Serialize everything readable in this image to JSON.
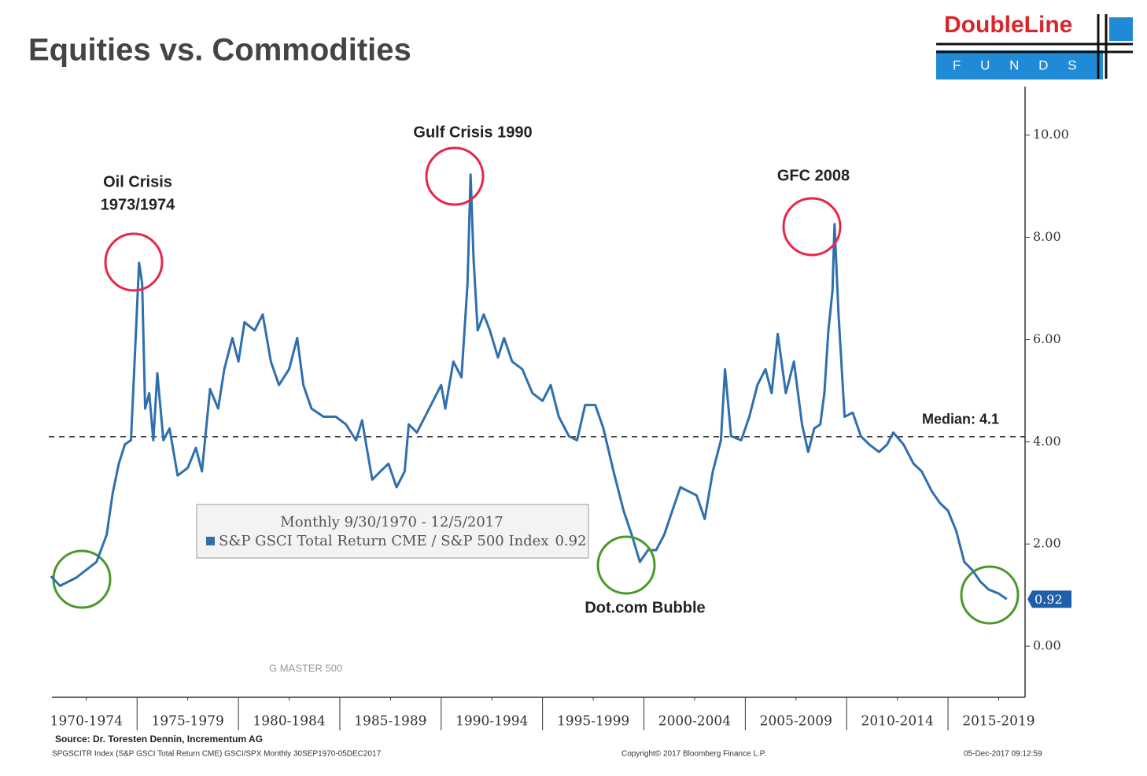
{
  "chart_data": {
    "type": "line",
    "title": "Equities vs. Commodities",
    "logo": {
      "name": "DoubleLine",
      "sub": "F U N D S"
    },
    "legend_title": "Monthly 9/30/1970 - 12/5/2017",
    "last_value_label": "0.92",
    "median": {
      "value": 4.1,
      "label": "Median: 4.1"
    },
    "annotations": [
      [
        "Oil Crisis",
        "1973/1974"
      ],
      [
        "Gulf Crisis 1990"
      ],
      [
        "GFC 2008"
      ],
      [
        "Dot.com Bubble"
      ]
    ],
    "watermark": "G MASTER 500",
    "source": "Source: Dr. Toresten Dennin, Incrementum AG",
    "footer": [
      "SPGSCITR Index (S&P GSCI Total Return CME) GSCI/SPX  Monthly 30SEP1970-05DEC2017",
      "Copyright© 2017 Bloomberg Finance L.P.",
      "05-Dec-2017 09:12:59"
    ],
    "xlim": [
      1970.8,
      2018.8
    ],
    "ylim": [
      -1,
      10.95
    ],
    "xticks": [
      {
        "value": 1972.5,
        "label": "1970-1974"
      },
      {
        "value": 1977.5,
        "label": "1975-1979"
      },
      {
        "value": 1982.5,
        "label": "1980-1984"
      },
      {
        "value": 1987.5,
        "label": "1985-1989"
      },
      {
        "value": 1992.5,
        "label": "1990-1994"
      },
      {
        "value": 1997.5,
        "label": "1995-1999"
      },
      {
        "value": 2002.5,
        "label": "2000-2004"
      },
      {
        "value": 2007.5,
        "label": "2005-2009"
      },
      {
        "value": 2012.5,
        "label": "2010-2014"
      },
      {
        "value": 2017.5,
        "label": "2015-2019"
      }
    ],
    "yticks": [
      {
        "value": 0,
        "label": "0.00"
      },
      {
        "value": 2,
        "label": "2.00"
      },
      {
        "value": 4,
        "label": "4.00"
      },
      {
        "value": 6,
        "label": "6.00"
      },
      {
        "value": 8,
        "label": "8.00"
      },
      {
        "value": 10,
        "label": "10.00"
      }
    ],
    "x": [
      1970.75,
      1971.2,
      1972,
      1973,
      1973.5,
      1973.8,
      1974.1,
      1974.4,
      1974.7,
      1974.95,
      1975.1,
      1975.25,
      1975.4,
      1975.6,
      1975.8,
      1976,
      1976.3,
      1976.6,
      1977,
      1977.5,
      1977.9,
      1978.2,
      1978.6,
      1979,
      1979.3,
      1979.7,
      1980,
      1980.3,
      1980.8,
      1981.2,
      1981.6,
      1982,
      1982.5,
      1982.9,
      1983.2,
      1983.6,
      1984.2,
      1984.8,
      1985.3,
      1985.8,
      1986.1,
      1986.3,
      1986.6,
      1987,
      1987.4,
      1987.8,
      1988.2,
      1988.4,
      1988.8,
      1989.2,
      1989.6,
      1990,
      1990.2,
      1990.6,
      1991,
      1991.3,
      1991.45,
      1991.6,
      1991.8,
      1992.1,
      1992.4,
      1992.8,
      1993.1,
      1993.5,
      1994,
      1994.5,
      1995,
      1995.4,
      1995.8,
      1996.3,
      1996.7,
      1997.1,
      1997.6,
      1998,
      1998.5,
      1999,
      1999.4,
      1999.8,
      2000.2,
      2000.6,
      2001,
      2001.4,
      2001.8,
      2002.2,
      2002.6,
      2003,
      2003.4,
      2003.8,
      2004,
      2004.3,
      2004.8,
      2005.2,
      2005.6,
      2006,
      2006.3,
      2006.6,
      2007,
      2007.4,
      2007.8,
      2008.1,
      2008.4,
      2008.7,
      2008.9,
      2009.1,
      2009.3,
      2009.4,
      2009.6,
      2009.9,
      2010.3,
      2010.7,
      2011.1,
      2011.6,
      2012,
      2012.3,
      2012.8,
      2013.3,
      2013.7,
      2014.2,
      2014.6,
      2015,
      2015.4,
      2015.8,
      2016.2,
      2016.6,
      2017,
      2017.5,
      2017.9
    ],
    "series": [
      {
        "name": "S&P GSCI Total Return CME / S&P 500 Index",
        "color": "#2f6fad",
        "values": [
          1.37,
          1.18,
          1.34,
          1.65,
          2.18,
          3.0,
          3.57,
          3.95,
          4.03,
          6.18,
          7.5,
          7.1,
          4.65,
          4.95,
          4.03,
          5.34,
          4.03,
          4.26,
          3.34,
          3.49,
          3.88,
          3.42,
          5.03,
          4.65,
          5.42,
          6.03,
          5.57,
          6.34,
          6.18,
          6.49,
          5.57,
          5.11,
          5.42,
          6.03,
          5.11,
          4.65,
          4.49,
          4.49,
          4.34,
          4.03,
          4.42,
          3.95,
          3.26,
          3.42,
          3.57,
          3.11,
          3.42,
          4.34,
          4.18,
          4.49,
          4.8,
          5.11,
          4.65,
          5.57,
          5.26,
          7.1,
          9.23,
          7.57,
          6.18,
          6.49,
          6.18,
          5.65,
          6.03,
          5.57,
          5.42,
          4.95,
          4.8,
          5.11,
          4.49,
          4.11,
          4.03,
          4.72,
          4.72,
          4.26,
          3.42,
          2.65,
          2.18,
          1.65,
          1.88,
          1.88,
          2.18,
          2.65,
          3.11,
          3.03,
          2.95,
          2.49,
          3.42,
          4.03,
          5.42,
          4.11,
          4.03,
          4.49,
          5.11,
          5.42,
          4.95,
          6.11,
          4.95,
          5.57,
          4.34,
          3.8,
          4.26,
          4.34,
          4.95,
          6.18,
          6.95,
          8.26,
          6.49,
          4.49,
          4.57,
          4.11,
          3.95,
          3.8,
          3.95,
          4.18,
          3.95,
          3.57,
          3.42,
          3.03,
          2.8,
          2.65,
          2.26,
          1.65,
          1.49,
          1.26,
          1.11,
          1.03,
          0.92
        ]
      }
    ]
  }
}
